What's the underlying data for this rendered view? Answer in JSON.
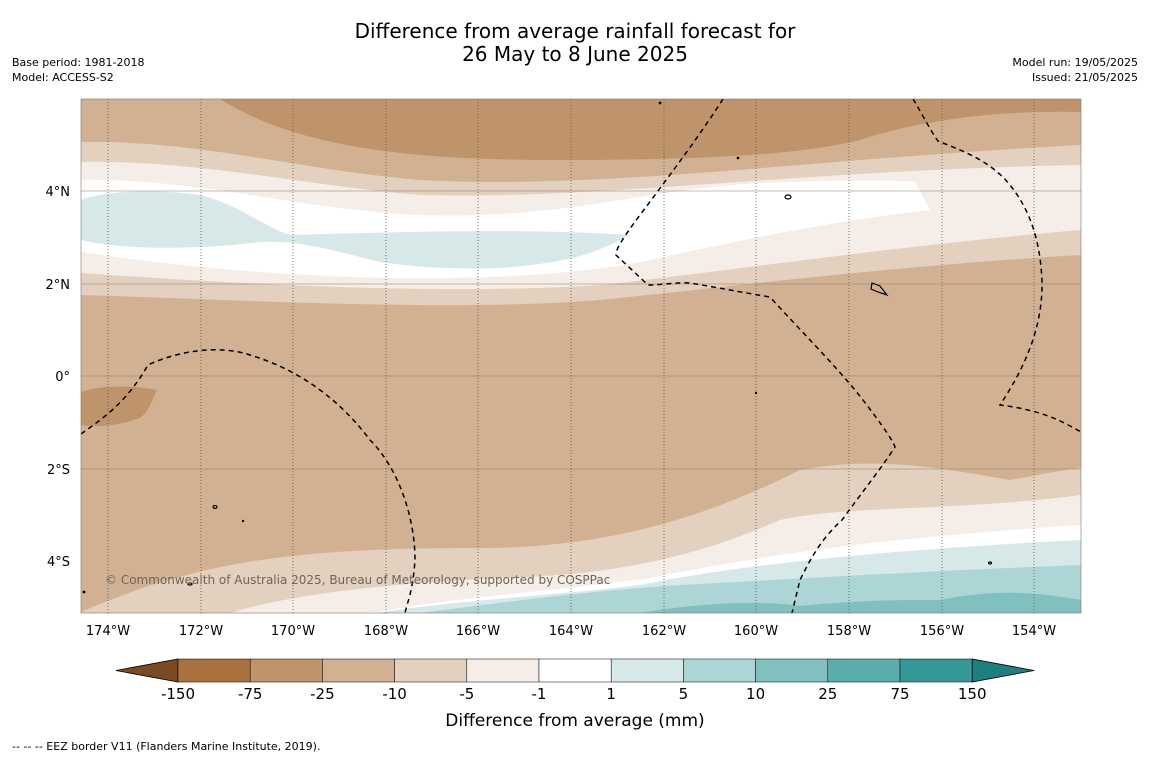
{
  "title": {
    "line1": "Difference from average rainfall forecast for",
    "line2": "26 May to 8 June 2025"
  },
  "meta_left": {
    "base_period": "Base period: 1981-2018",
    "model": "Model: ACCESS-S2"
  },
  "meta_right": {
    "model_run": "Model run: 19/05/2025",
    "issued": "Issued: 21/05/2025"
  },
  "map": {
    "copyright": "© Commonwealth of Australia 2025, Bureau of Meteorology, supported by COSPPac",
    "lat_labels": [
      "4°N",
      "2°N",
      "0°",
      "2°S",
      "4°S"
    ],
    "lon_labels": [
      "174°W",
      "172°W",
      "170°W",
      "168°W",
      "166°W",
      "164°W",
      "162°W",
      "160°W",
      "158°W",
      "156°W",
      "154°W"
    ]
  },
  "colorbar": {
    "title": "Difference from average (mm)",
    "tick_labels": [
      "-150",
      "-75",
      "-25",
      "-10",
      "-5",
      "-1",
      "1",
      "5",
      "10",
      "25",
      "75",
      "150"
    ],
    "colors": [
      "#7b4a22",
      "#a8713e",
      "#c0946a",
      "#d2b193",
      "#e4d0bf",
      "#f5ede7",
      "#ffffff",
      "#d6e9e8",
      "#acd5d5",
      "#80c1bf",
      "#5aadab",
      "#35999a",
      "#1d7f7f"
    ]
  },
  "footnote": "--  --  -- EEZ border V11 (Flanders Marine Institute, 2019)."
}
